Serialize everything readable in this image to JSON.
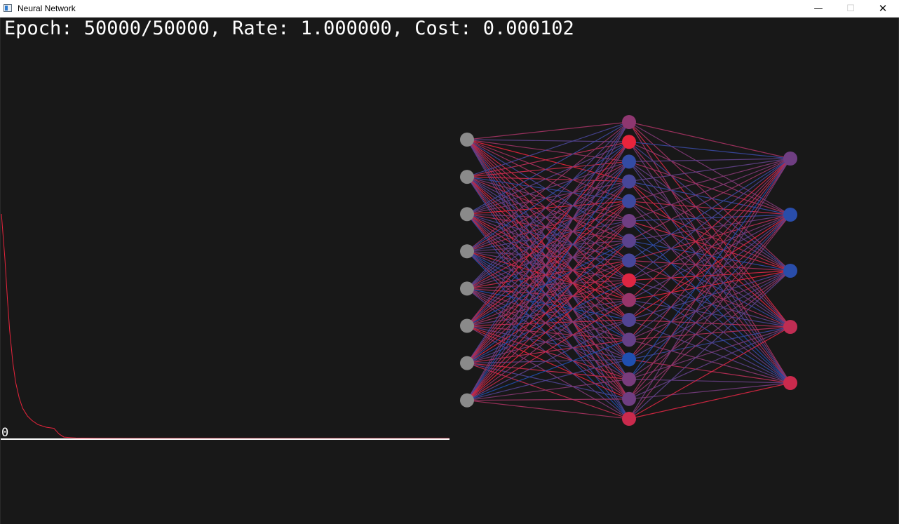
{
  "window": {
    "title": "Neural Network",
    "minimize_glyph": "—",
    "maximize_glyph": "☐",
    "close_glyph": "✕"
  },
  "status": {
    "text": "Epoch: 50000/50000, Rate: 1.000000, Cost: 0.000102"
  },
  "cost_plot": {
    "baseline_label": "0",
    "curve_color": "#e8243c",
    "baseline_color": "#ffffff",
    "points": [
      [
        0,
        1.0
      ],
      [
        100,
        0.8
      ],
      [
        200,
        0.62
      ],
      [
        300,
        0.48
      ],
      [
        450,
        0.34
      ],
      [
        600,
        0.25
      ],
      [
        800,
        0.18
      ],
      [
        1000,
        0.135
      ],
      [
        1300,
        0.1
      ],
      [
        1600,
        0.08
      ],
      [
        2000,
        0.062
      ],
      [
        2600,
        0.05
      ],
      [
        3200,
        0.045
      ],
      [
        3600,
        0.02
      ],
      [
        4000,
        0.006
      ],
      [
        5000,
        0.002
      ],
      [
        7000,
        0.0005
      ],
      [
        10000,
        0.0002
      ],
      [
        50000,
        0.000102
      ]
    ]
  },
  "network": {
    "layers": [
      8,
      16,
      5
    ],
    "colors": {
      "positive": "#e8243c",
      "negative": "#1f4fb0",
      "input_neuron": "#8a8a8a"
    },
    "hidden_activation": [
      0.55,
      1.0,
      0.1,
      0.2,
      0.15,
      0.4,
      0.3,
      0.2,
      0.95,
      0.6,
      0.25,
      0.35,
      0.0,
      0.45,
      0.4,
      0.85
    ],
    "output_activation": [
      0.4,
      0.05,
      0.05,
      0.8,
      0.85
    ]
  }
}
